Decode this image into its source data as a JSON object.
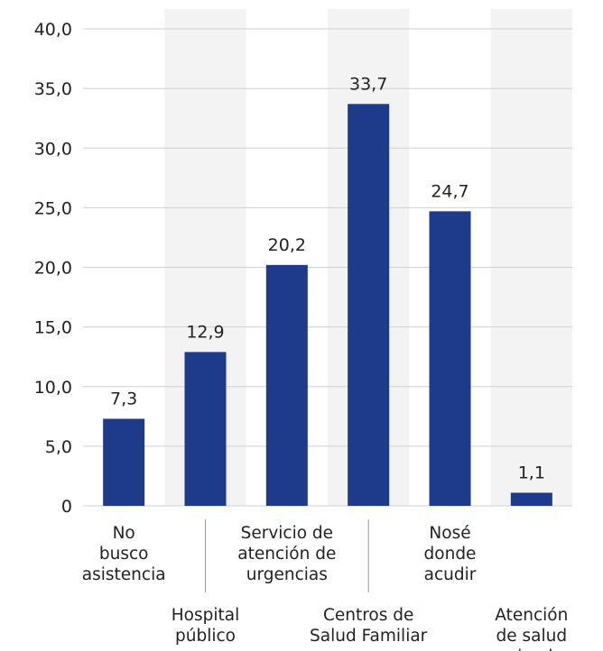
{
  "colors": {
    "bar": "#1e3a8a",
    "band": "#f3f3f3",
    "grid": "#cfcfcf",
    "text": "#222222",
    "separator": "#999999"
  },
  "chart_data": {
    "type": "bar",
    "title": "",
    "xlabel": "",
    "ylabel": "",
    "ylim": [
      0,
      40
    ],
    "grid": true,
    "categories": [
      "No busco asistencia",
      "Hospital público",
      "Servicio de atención de urgencias",
      "Centros de Salud Familiar",
      "Nosé donde acudir",
      "Atención de salud privada"
    ],
    "category_lines": [
      [
        "No",
        "busco",
        "asistencia"
      ],
      [
        "Hospital",
        "público"
      ],
      [
        "Servicio de",
        "atención de",
        "urgencias"
      ],
      [
        "Centros de",
        "Salud Familiar"
      ],
      [
        "Nosé",
        "donde",
        "acudir"
      ],
      [
        "Atención",
        "de salud",
        "privada"
      ]
    ],
    "values": [
      7.3,
      12.9,
      20.2,
      33.7,
      24.7,
      1.1
    ],
    "value_labels": [
      "7,3",
      "12,9",
      "20,2",
      "33,7",
      "24,7",
      "1,1"
    ],
    "y_ticks": [
      0,
      5,
      10,
      15,
      20,
      25,
      30,
      35,
      40
    ],
    "y_tick_labels": [
      "0",
      "5,0",
      "10,0",
      "15,0",
      "20,0",
      "25,0",
      "30,0",
      "35,0",
      "40,0"
    ]
  }
}
